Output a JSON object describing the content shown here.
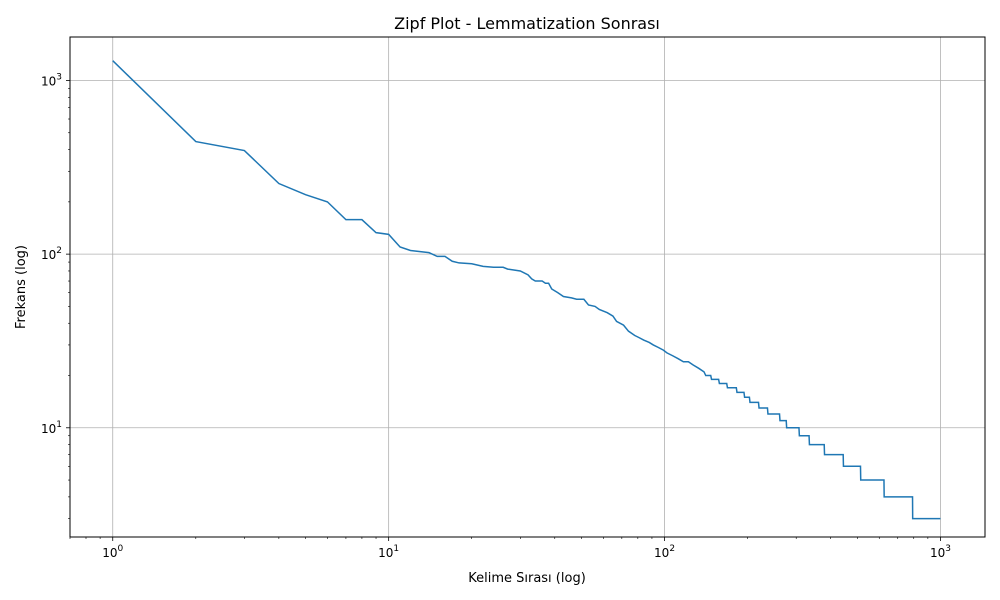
{
  "chart_data": {
    "type": "line",
    "title": "Zipf Plot - Lemmatization Sonrası",
    "xlabel": "Kelime Sırası (log)",
    "ylabel": "Frekans (log)",
    "xscale": "log",
    "yscale": "log",
    "xlim": [
      0.7,
      1450
    ],
    "ylim": [
      2.35,
      1780
    ],
    "grid": true,
    "x_ticks": [
      {
        "value": 1,
        "base": "10",
        "exp": "0"
      },
      {
        "value": 10,
        "base": "10",
        "exp": "1"
      },
      {
        "value": 100,
        "base": "10",
        "exp": "2"
      },
      {
        "value": 1000,
        "base": "10",
        "exp": "3"
      }
    ],
    "y_ticks": [
      {
        "value": 10,
        "base": "10",
        "exp": "1"
      },
      {
        "value": 100,
        "base": "10",
        "exp": "2"
      },
      {
        "value": 1000,
        "base": "10",
        "exp": "3"
      }
    ],
    "colors": {
      "line": "#1f77b4",
      "grid": "#b0b0b0",
      "axes": "#000000"
    },
    "series": [
      {
        "values": [
          [
            1,
            1300
          ],
          [
            2,
            445
          ],
          [
            3,
            395
          ],
          [
            4,
            255
          ],
          [
            5,
            220
          ],
          [
            6,
            200
          ],
          [
            7,
            158
          ],
          [
            8,
            158
          ],
          [
            9,
            133
          ],
          [
            10,
            130
          ],
          [
            11,
            110
          ],
          [
            12,
            105
          ],
          [
            14,
            102
          ],
          [
            15,
            97
          ],
          [
            16,
            97
          ],
          [
            17,
            91
          ],
          [
            18,
            89
          ],
          [
            20,
            88
          ],
          [
            22,
            85
          ],
          [
            24,
            84
          ],
          [
            26,
            84
          ],
          [
            27,
            82
          ],
          [
            30,
            80
          ],
          [
            32,
            76
          ],
          [
            33,
            72
          ],
          [
            34,
            70
          ],
          [
            36,
            70
          ],
          [
            37,
            68
          ],
          [
            38,
            68
          ],
          [
            39,
            63
          ],
          [
            41,
            60
          ],
          [
            43,
            57
          ],
          [
            46,
            56
          ],
          [
            48,
            55
          ],
          [
            51,
            55
          ],
          [
            53,
            51
          ],
          [
            56,
            50
          ],
          [
            58,
            48
          ],
          [
            62,
            46
          ],
          [
            65,
            44
          ],
          [
            67,
            41
          ],
          [
            71,
            39
          ],
          [
            74,
            36
          ],
          [
            78,
            34
          ],
          [
            81,
            33
          ],
          [
            84,
            32
          ],
          [
            88,
            31
          ],
          [
            91,
            30
          ],
          [
            95,
            29
          ],
          [
            99,
            28
          ],
          [
            102,
            27
          ],
          [
            107,
            26
          ],
          [
            112,
            25
          ],
          [
            117,
            24
          ],
          [
            122,
            24
          ],
          [
            127,
            23
          ],
          [
            133,
            22
          ],
          [
            139,
            21
          ],
          [
            141,
            20
          ],
          [
            147,
            20
          ],
          [
            148,
            19
          ],
          [
            157,
            19
          ],
          [
            158,
            18
          ],
          [
            168,
            18
          ],
          [
            169,
            17
          ],
          [
            182,
            17
          ],
          [
            183,
            16
          ],
          [
            194,
            16
          ],
          [
            195,
            15
          ],
          [
            203,
            15
          ],
          [
            204,
            14
          ],
          [
            219,
            14
          ],
          [
            220,
            13
          ],
          [
            236,
            13
          ],
          [
            237,
            12
          ],
          [
            261,
            12
          ],
          [
            262,
            11
          ],
          [
            276,
            11
          ],
          [
            277,
            10
          ],
          [
            307,
            10
          ],
          [
            308,
            9
          ],
          [
            334,
            9
          ],
          [
            335,
            8
          ],
          [
            379,
            8
          ],
          [
            380,
            7
          ],
          [
            444,
            7
          ],
          [
            445,
            6
          ],
          [
            513,
            6
          ],
          [
            514,
            5
          ],
          [
            624,
            5
          ],
          [
            625,
            4
          ],
          [
            792,
            4
          ],
          [
            793,
            3
          ],
          [
            1000,
            3
          ]
        ]
      }
    ]
  }
}
